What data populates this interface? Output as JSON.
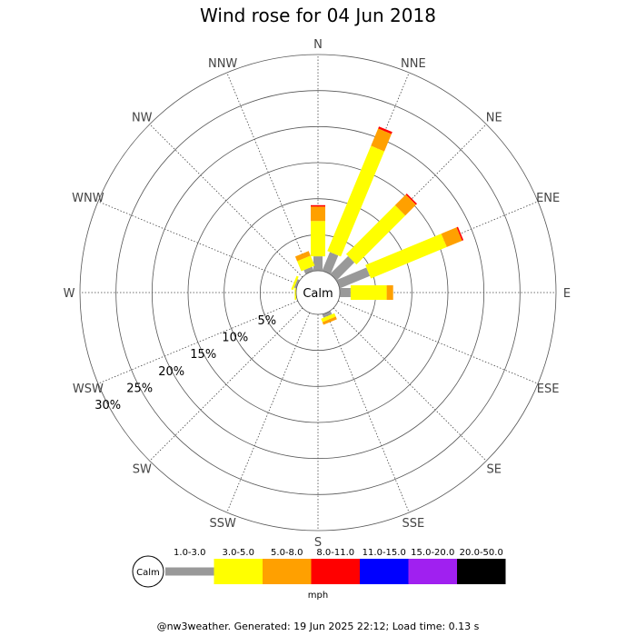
{
  "chart_data": {
    "type": "wind-rose",
    "title": "Wind rose for 04 Jun 2018",
    "directions": [
      "N",
      "NNE",
      "NE",
      "ENE",
      "E",
      "ESE",
      "SE",
      "SSE",
      "S",
      "SSW",
      "SW",
      "WSW",
      "W",
      "WNW",
      "NW",
      "NNW"
    ],
    "radial_ticks": [
      "5%",
      "10%",
      "15%",
      "20%",
      "25%",
      "30%"
    ],
    "radial_values": [
      5,
      10,
      15,
      20,
      25,
      30
    ],
    "radial_max": 30,
    "calm_label": "Calm",
    "speed_bins": [
      "1.0-3.0",
      "3.0-5.0",
      "5.0-8.0",
      "8.0-11.0",
      "11.0-15.0",
      "15.0-20.0",
      "20.0-50.0"
    ],
    "bin_colors": [
      "#999999",
      "#ffff00",
      "#ffa000",
      "#ff0000",
      "#0000ff",
      "#a020f0",
      "#000000"
    ],
    "unit": "mph",
    "series": [
      {
        "direction": "N",
        "values": [
          2.0,
          4.9,
          2.0,
          0.2,
          0,
          0,
          0
        ]
      },
      {
        "direction": "NNE",
        "values": [
          2.8,
          15.8,
          2.6,
          0.3,
          0,
          0,
          0
        ]
      },
      {
        "direction": "NE",
        "values": [
          3.5,
          9.6,
          2.1,
          0.2,
          0,
          0,
          0
        ]
      },
      {
        "direction": "ENE",
        "values": [
          4.5,
          11.4,
          2.3,
          0.2,
          0,
          0,
          0
        ]
      },
      {
        "direction": "E",
        "values": [
          1.5,
          5.0,
          0.9,
          0,
          0,
          0,
          0
        ]
      },
      {
        "direction": "ESE",
        "values": [
          0,
          0,
          0,
          0,
          0,
          0,
          0
        ]
      },
      {
        "direction": "SE",
        "values": [
          0,
          0,
          0,
          0,
          0,
          0,
          0
        ]
      },
      {
        "direction": "SSE",
        "values": [
          0.5,
          0.5,
          0.4,
          0,
          0,
          0,
          0
        ]
      },
      {
        "direction": "S",
        "values": [
          0,
          0,
          0,
          0,
          0,
          0,
          0
        ]
      },
      {
        "direction": "SSW",
        "values": [
          0,
          0,
          0,
          0,
          0,
          0,
          0
        ]
      },
      {
        "direction": "SW",
        "values": [
          0,
          0,
          0,
          0,
          0,
          0,
          0
        ]
      },
      {
        "direction": "WSW",
        "values": [
          0,
          0,
          0,
          0,
          0,
          0,
          0
        ]
      },
      {
        "direction": "W",
        "values": [
          0,
          0.2,
          0,
          0,
          0,
          0,
          0
        ]
      },
      {
        "direction": "WNW",
        "values": [
          0.3,
          0.3,
          0,
          0,
          0,
          0,
          0
        ]
      },
      {
        "direction": "NW",
        "values": [
          0,
          0,
          0,
          0,
          0,
          0,
          0
        ]
      },
      {
        "direction": "NNW",
        "values": [
          0.6,
          1.5,
          0.7,
          0,
          0,
          0,
          0
        ]
      }
    ]
  },
  "footer": "@nw3weather. Generated: 19 Jun 2025 22:12; Load time: 0.13 s"
}
